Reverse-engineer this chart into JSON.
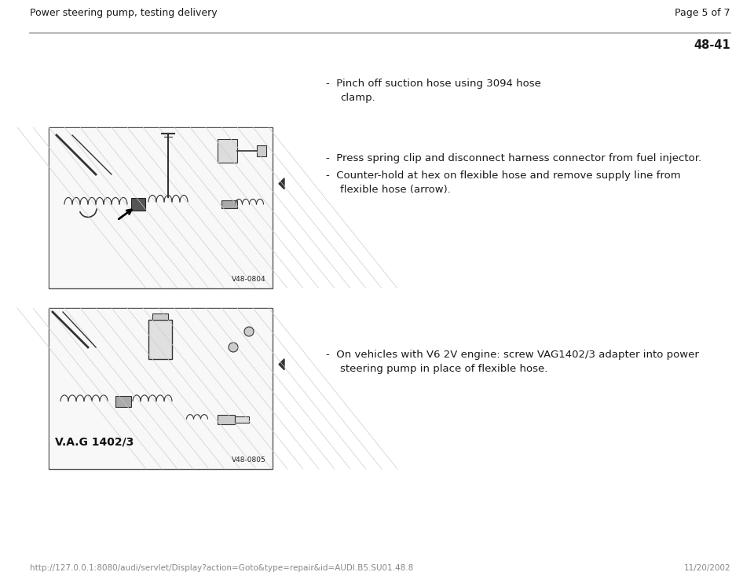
{
  "bg_color": "#ffffff",
  "header_left": "Power steering pump, testing delivery",
  "header_right": "Page 5 of 7",
  "page_number": "48-41",
  "box1_label": "V48-0804",
  "box2_label": "V48-0805",
  "box2_vag_text": "V.A.G 1402/3",
  "bullet1_line1": "Pinch off suction hose using 3094 hose",
  "bullet1_line2": "clamp.",
  "callout1_line1": "Press spring clip and disconnect harness connector from fuel injector.",
  "callout1_line2": "Counter-hold at hex on flexible hose and remove supply line from",
  "callout1_line3": "flexible hose (arrow).",
  "callout2_line1": "On vehicles with V6 2V engine: screw VAG1402/3 adapter into power",
  "callout2_line2": "steering pump in place of flexible hose.",
  "footer_left": "http://127.0.0.1:8080/audi/servlet/Display?action=Goto&type=repair&id=AUDI.B5.SU01.48.8",
  "footer_right": "11/20/2002",
  "separator_color": "#aaaaaa",
  "text_color": "#1a1a1a",
  "footer_color": "#888888",
  "header_font_size": 9.0,
  "body_font_size": 9.5,
  "footer_font_size": 7.5,
  "page_num_font_size": 10.5
}
